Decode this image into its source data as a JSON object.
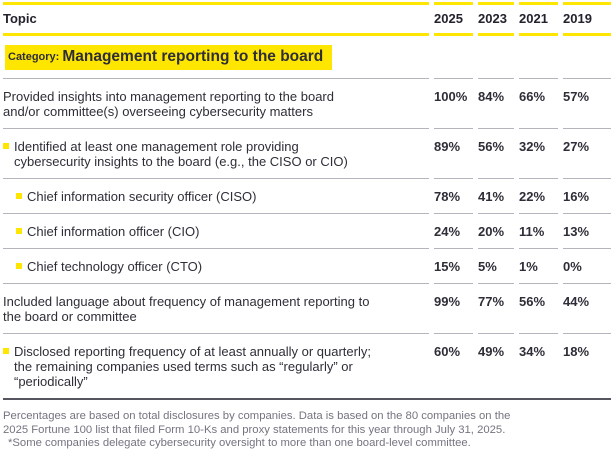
{
  "table": {
    "header": {
      "topic": "Topic",
      "years": [
        "2025",
        "2023",
        "2021",
        "2019"
      ]
    },
    "category": {
      "label": "Category:",
      "title": "Management reporting to the board"
    },
    "rows": [
      {
        "indent": 0,
        "topic": [
          "Provided insights into management reporting to the board",
          "and/or committee(s) overseeing cybersecurity matters"
        ],
        "values": [
          "100%",
          "84%",
          "66%",
          "57%"
        ]
      },
      {
        "indent": 1,
        "topic": [
          "Identified at least one management role providing",
          "cybersecurity insights to the board (e.g., the CISO or CIO)"
        ],
        "values": [
          "89%",
          "56%",
          "32%",
          "27%"
        ]
      },
      {
        "indent": 2,
        "topic": [
          "Chief information security officer (CISO)"
        ],
        "values": [
          "78%",
          "41%",
          "22%",
          "16%"
        ]
      },
      {
        "indent": 2,
        "topic": [
          "Chief information officer (CIO)"
        ],
        "values": [
          "24%",
          "20%",
          "11%",
          "13%"
        ]
      },
      {
        "indent": 2,
        "topic": [
          "Chief technology officer (CTO)"
        ],
        "values": [
          "15%",
          "5%",
          "1%",
          "0%"
        ]
      },
      {
        "indent": 0,
        "topic": [
          "Included language about frequency of management reporting to",
          "the board or committee"
        ],
        "values": [
          "99%",
          "77%",
          "56%",
          "44%"
        ]
      },
      {
        "indent": 1,
        "topic": [
          "Disclosed reporting frequency of at least annually or quarterly;",
          "the remaining companies used terms such as “regularly” or",
          "“periodically”"
        ],
        "values": [
          "60%",
          "49%",
          "34%",
          "18%"
        ]
      }
    ]
  },
  "footnotes": {
    "lines": [
      "Percentages are based on total disclosures by companies. Data is based on the 80 companies on the",
      "2025 Fortune 100 list that filed Form 10-Ks and proxy statements for this year through July 31, 2025.",
      "*Some companies delegate cybersecurity oversight to more than one board-level committee."
    ]
  },
  "colors": {
    "accent_yellow": "#ffe600",
    "ink": "#23232e",
    "muted_gray": "#747480"
  }
}
